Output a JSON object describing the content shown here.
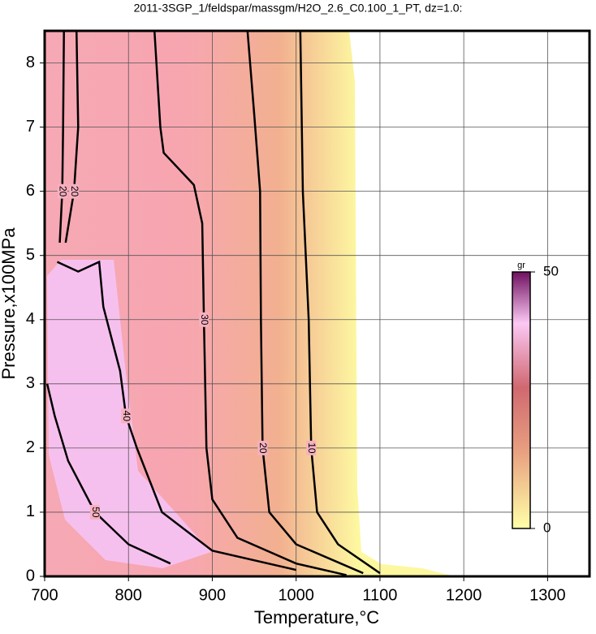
{
  "chart_data": {
    "type": "contour",
    "title": "2011-3SGP_1/feldspar/massgm/H2O_2.6_C0.100_1_PT, dz=1.0:",
    "x_label": "Temperature,°C",
    "y_label": "Pressure,x100MPa",
    "xlim": [
      700,
      1350
    ],
    "ylim": [
      0,
      8.5
    ],
    "xticks": [
      700,
      800,
      900,
      1000,
      1100,
      1200,
      1300
    ],
    "yticks": [
      0,
      1,
      2,
      3,
      4,
      5,
      6,
      7,
      8
    ],
    "grid": true,
    "colorbar": {
      "label": "gr",
      "lim": [
        0,
        50
      ],
      "ticks": [
        0,
        50
      ]
    },
    "contours": [
      {
        "level": 10,
        "x": [
          1005,
          1008,
          1015,
          1018,
          1025,
          1050,
          1100
        ],
        "y": [
          8.5,
          6,
          4,
          2,
          1,
          0.5,
          0.05
        ]
      },
      {
        "level": 20,
        "x": [
          942,
          950,
          957,
          958,
          960,
          968,
          1000,
          1080
        ],
        "y": [
          8.5,
          7.2,
          6,
          4,
          2,
          1,
          0.5,
          0.05
        ]
      },
      {
        "level": 30,
        "x": [
          831,
          838,
          842,
          878,
          888,
          890,
          893,
          900,
          930,
          1000,
          1060
        ],
        "y": [
          8.5,
          7,
          6.6,
          6.1,
          5.5,
          4,
          2,
          1.2,
          0.6,
          0.2,
          0.02
        ]
      },
      {
        "level": 40,
        "x": [
          715,
          740,
          765,
          770,
          790,
          797,
          810,
          840,
          900,
          1000
        ],
        "y": [
          4.9,
          4.75,
          4.9,
          4.2,
          3.2,
          2.5,
          2,
          1,
          0.4,
          0.1
        ]
      },
      {
        "level": 50,
        "x": [
          703,
          712,
          728,
          760,
          800,
          850
        ],
        "y": [
          3,
          2.5,
          1.8,
          1,
          0.5,
          0.2
        ]
      },
      {
        "level": 20,
        "x": [
          723,
          722,
          721,
          718
        ],
        "y": [
          8.5,
          7,
          6,
          5.2
        ]
      },
      {
        "level": 20,
        "x": [
          738,
          740,
          735,
          725
        ],
        "y": [
          8.5,
          7,
          6,
          5.2
        ]
      }
    ]
  }
}
